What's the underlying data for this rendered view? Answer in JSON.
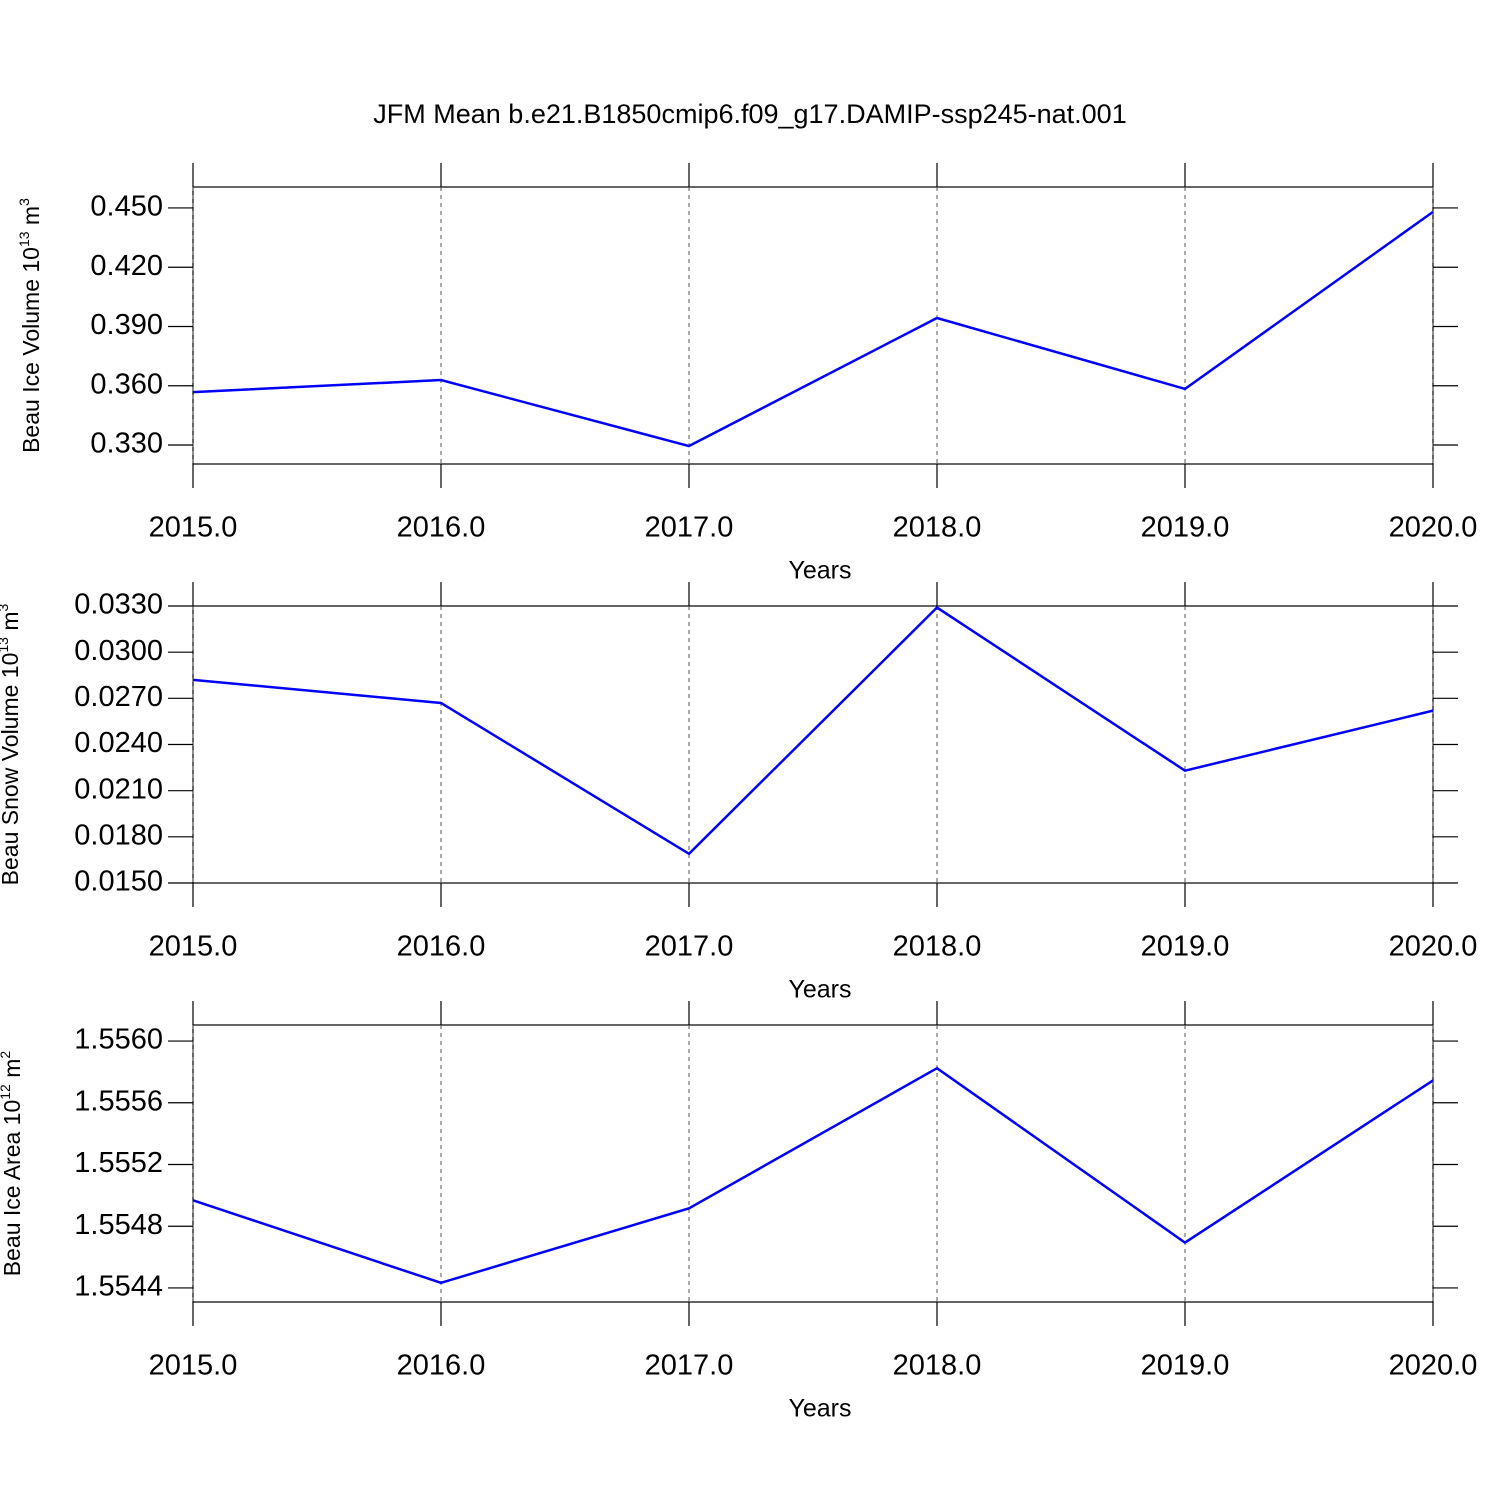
{
  "chart_data": [
    {
      "type": "line",
      "title": "JFM Mean b.e21.B1850cmip6.f09_g17.DAMIP-ssp245-nat.001",
      "xlabel": "Years",
      "ylabel": {
        "text": "Beau Ice Volume 10",
        "exponent": "13",
        "unit": " m",
        "unit_power": "3"
      },
      "x": [
        2015,
        2016,
        2017,
        2018,
        2019,
        2020
      ],
      "series": [
        {
          "color": "#0000ff",
          "values": [
            0.3568,
            0.3629,
            0.3295,
            0.3943,
            0.3584,
            0.448
          ]
        }
      ],
      "xlim": [
        2015,
        2020
      ],
      "xticks": [
        {
          "value": 2015,
          "label": "2015.0"
        },
        {
          "value": 2016,
          "label": "2016.0"
        },
        {
          "value": 2017,
          "label": "2017.0"
        },
        {
          "value": 2018,
          "label": "2018.0"
        },
        {
          "value": 2019,
          "label": "2019.0"
        },
        {
          "value": 2020,
          "label": "2020.0"
        }
      ],
      "ylim": [
        0.3204,
        0.4606
      ],
      "yticks": [
        {
          "value": 0.33,
          "label": "0.330"
        },
        {
          "value": 0.36,
          "label": "0.360"
        },
        {
          "value": 0.39,
          "label": "0.390"
        },
        {
          "value": 0.42,
          "label": "0.420"
        },
        {
          "value": 0.45,
          "label": "0.450"
        }
      ],
      "grid": "x-dashed"
    },
    {
      "type": "line",
      "xlabel": "Years",
      "ylabel": {
        "text": "Beau Snow Volume 10",
        "exponent": "13",
        "unit": " m",
        "unit_power": "3"
      },
      "x": [
        2015,
        2016,
        2017,
        2018,
        2019,
        2020
      ],
      "series": [
        {
          "color": "#0000ff",
          "values": [
            0.0282,
            0.0267,
            0.0169,
            0.0329,
            0.0223,
            0.0262
          ]
        }
      ],
      "xlim": [
        2015,
        2020
      ],
      "xticks": [
        {
          "value": 2015,
          "label": "2015.0"
        },
        {
          "value": 2016,
          "label": "2016.0"
        },
        {
          "value": 2017,
          "label": "2017.0"
        },
        {
          "value": 2018,
          "label": "2018.0"
        },
        {
          "value": 2019,
          "label": "2019.0"
        },
        {
          "value": 2020,
          "label": "2020.0"
        }
      ],
      "ylim": [
        0.015,
        0.033
      ],
      "yticks": [
        {
          "value": 0.015,
          "label": "0.0150"
        },
        {
          "value": 0.018,
          "label": "0.0180"
        },
        {
          "value": 0.021,
          "label": "0.0210"
        },
        {
          "value": 0.024,
          "label": "0.0240"
        },
        {
          "value": 0.027,
          "label": "0.0270"
        },
        {
          "value": 0.03,
          "label": "0.0300"
        },
        {
          "value": 0.033,
          "label": "0.0330"
        }
      ],
      "grid": "x-dashed"
    },
    {
      "type": "line",
      "xlabel": "Years",
      "ylabel": {
        "text": "Beau Ice Area 10",
        "exponent": "12",
        "unit": " m",
        "unit_power": "2"
      },
      "x": [
        2015,
        2016,
        2017,
        2018,
        2019,
        2020
      ],
      "series": [
        {
          "color": "#0000ff",
          "values": [
            1.554968,
            1.554433,
            1.554916,
            1.555824,
            1.554694,
            1.555745
          ]
        }
      ],
      "xlim": [
        2015,
        2020
      ],
      "xticks": [
        {
          "value": 2015,
          "label": "2015.0"
        },
        {
          "value": 2016,
          "label": "2016.0"
        },
        {
          "value": 2017,
          "label": "2017.0"
        },
        {
          "value": 2018,
          "label": "2018.0"
        },
        {
          "value": 2019,
          "label": "2019.0"
        },
        {
          "value": 2020,
          "label": "2020.0"
        }
      ],
      "ylim": [
        1.554309,
        1.556104
      ],
      "yticks": [
        {
          "value": 1.5544,
          "label": "1.5544"
        },
        {
          "value": 1.5548,
          "label": "1.5548"
        },
        {
          "value": 1.5552,
          "label": "1.5552"
        },
        {
          "value": 1.5556,
          "label": "1.5556"
        },
        {
          "value": 1.556,
          "label": "1.5560"
        }
      ],
      "grid": "x-dashed"
    }
  ]
}
